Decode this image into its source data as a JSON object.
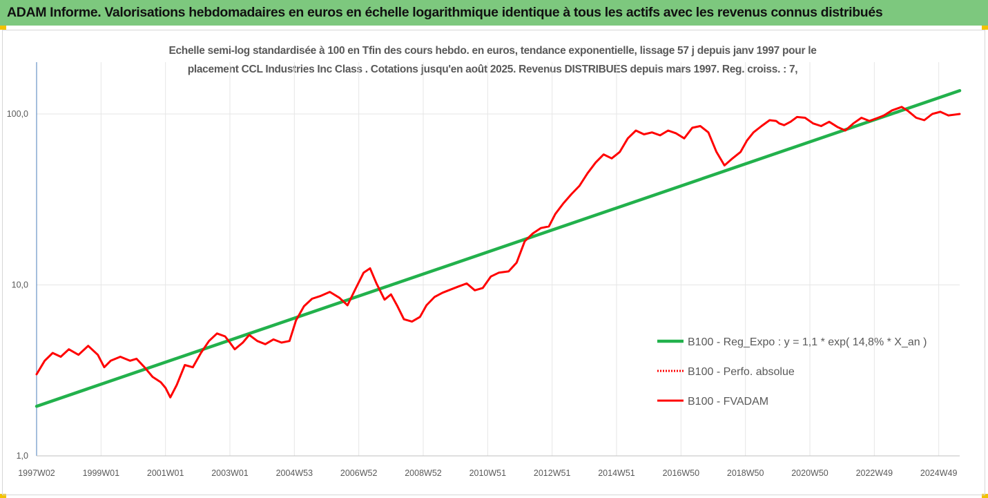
{
  "banner": {
    "title": "ADAM Informe. Valorisations hebdomadaires en euros en échelle logarithmique identique à tous les actifs avec les revenus connus distribués"
  },
  "colors": {
    "banner_bg": "#7dc87e",
    "trend": "#22b14c",
    "fvadam": "#ff0000",
    "perfo": "#ff0000",
    "grid": "#e6e6e6",
    "text": "#595959"
  },
  "chart_data": {
    "type": "line",
    "title_line1": "Echelle semi-log standardisée à 100 en Tfin des cours hebdo. en euros, tendance exponentielle, lissage 57 j depuis janv 1997 pour le",
    "title_line2": "placement CCL Industries Inc Class . Cotations jusqu'en août 2025. Revenus DISTRIBUES depuis mars 1997. Reg. croiss. : 7,",
    "y_scale": "log",
    "ylim": [
      1,
      180
    ],
    "y_ticks": [
      {
        "value": 1,
        "label": "1,0"
      },
      {
        "value": 10,
        "label": "10,0"
      },
      {
        "value": 100,
        "label": "100,0"
      }
    ],
    "x_domain": [
      1997.0,
      2025.65
    ],
    "x_ticks": [
      {
        "x": 1997.0,
        "label": "1997W02"
      },
      {
        "x": 1999.0,
        "label": "1999W01"
      },
      {
        "x": 2001.0,
        "label": "2001W01"
      },
      {
        "x": 2003.0,
        "label": "2003W01"
      },
      {
        "x": 2005.0,
        "label": "2004W53"
      },
      {
        "x": 2007.0,
        "label": "2006W52"
      },
      {
        "x": 2009.0,
        "label": "2008W52"
      },
      {
        "x": 2011.0,
        "label": "2010W51"
      },
      {
        "x": 2013.0,
        "label": "2012W51"
      },
      {
        "x": 2015.0,
        "label": "2014W51"
      },
      {
        "x": 2017.0,
        "label": "2016W50"
      },
      {
        "x": 2019.0,
        "label": "2018W50"
      },
      {
        "x": 2021.0,
        "label": "2020W50"
      },
      {
        "x": 2023.0,
        "label": "2022W49"
      },
      {
        "x": 2025.0,
        "label": "2024W49"
      }
    ],
    "grid": "vertical",
    "legend_position": "right",
    "series": [
      {
        "name": "B100 - Reg_Expo : y = 1,1 * exp( 14,8% *  X_an )",
        "style": "solid-thick",
        "x": [
          1997.0,
          2025.65
        ],
        "y": [
          1.95,
          137
        ]
      },
      {
        "name": "B100 - Perfo. absolue",
        "style": "dotted",
        "x": [],
        "y": []
      },
      {
        "name": "B100 - FVADAM",
        "style": "solid",
        "x": [
          1997.0,
          1997.25,
          1997.5,
          1997.75,
          1998.0,
          1998.3,
          1998.6,
          1998.9,
          1999.1,
          1999.3,
          1999.6,
          1999.9,
          2000.1,
          2000.35,
          2000.6,
          2000.85,
          2001.0,
          2001.15,
          2001.35,
          2001.6,
          2001.85,
          2002.1,
          2002.35,
          2002.6,
          2002.85,
          2003.0,
          2003.15,
          2003.4,
          2003.6,
          2003.85,
          2004.1,
          2004.35,
          2004.6,
          2004.85,
          2005.05,
          2005.3,
          2005.55,
          2005.8,
          2006.1,
          2006.4,
          2006.65,
          2006.9,
          2007.15,
          2007.35,
          2007.55,
          2007.8,
          2008.0,
          2008.2,
          2008.4,
          2008.65,
          2008.9,
          2009.1,
          2009.35,
          2009.6,
          2009.85,
          2010.1,
          2010.35,
          2010.6,
          2010.85,
          2011.1,
          2011.35,
          2011.65,
          2011.9,
          2012.15,
          2012.4,
          2012.65,
          2012.9,
          2013.1,
          2013.35,
          2013.6,
          2013.85,
          2014.1,
          2014.35,
          2014.6,
          2014.85,
          2015.1,
          2015.35,
          2015.6,
          2015.85,
          2016.1,
          2016.35,
          2016.6,
          2016.85,
          2017.1,
          2017.35,
          2017.6,
          2017.85,
          2018.1,
          2018.35,
          2018.6,
          2018.85,
          2019.05,
          2019.25,
          2019.5,
          2019.75,
          2019.95,
          2020.05,
          2020.2,
          2020.4,
          2020.6,
          2020.85,
          2021.1,
          2021.35,
          2021.6,
          2021.85,
          2022.1,
          2022.35,
          2022.6,
          2022.85,
          2023.05,
          2023.3,
          2023.55,
          2023.85,
          2024.05,
          2024.3,
          2024.55,
          2024.8,
          2025.05,
          2025.3,
          2025.65
        ],
        "y": [
          3.0,
          3.6,
          4.0,
          3.8,
          4.2,
          3.9,
          4.4,
          3.9,
          3.3,
          3.6,
          3.8,
          3.6,
          3.7,
          3.3,
          2.9,
          2.7,
          2.5,
          2.2,
          2.6,
          3.4,
          3.3,
          4.0,
          4.7,
          5.2,
          5.0,
          4.6,
          4.2,
          4.6,
          5.1,
          4.7,
          4.5,
          4.8,
          4.6,
          4.7,
          6.2,
          7.5,
          8.3,
          8.6,
          9.1,
          8.4,
          7.6,
          9.5,
          11.8,
          12.5,
          10.2,
          8.2,
          8.8,
          7.5,
          6.3,
          6.1,
          6.5,
          7.6,
          8.5,
          9.0,
          9.4,
          9.8,
          10.2,
          9.3,
          9.6,
          11.2,
          11.8,
          12.0,
          13.5,
          18.0,
          20.0,
          21.5,
          22.0,
          26.0,
          30.0,
          34.0,
          38.0,
          45.0,
          52.0,
          58.0,
          55.0,
          60.0,
          72.0,
          80.0,
          76.0,
          78.0,
          75.0,
          80.0,
          77.0,
          72.0,
          83.0,
          85.0,
          78.0,
          60.0,
          50.0,
          55.0,
          60.0,
          70.0,
          78.0,
          85.0,
          92.0,
          91.0,
          88.0,
          86.0,
          90.0,
          96.0,
          95.0,
          88.0,
          85.0,
          90.0,
          84.0,
          80.0,
          88.0,
          95.0,
          91.0,
          94.0,
          98.0,
          105.0,
          110.0,
          104.0,
          95.0,
          92.0,
          100.0,
          103.0,
          98.0,
          100.0
        ]
      }
    ]
  }
}
